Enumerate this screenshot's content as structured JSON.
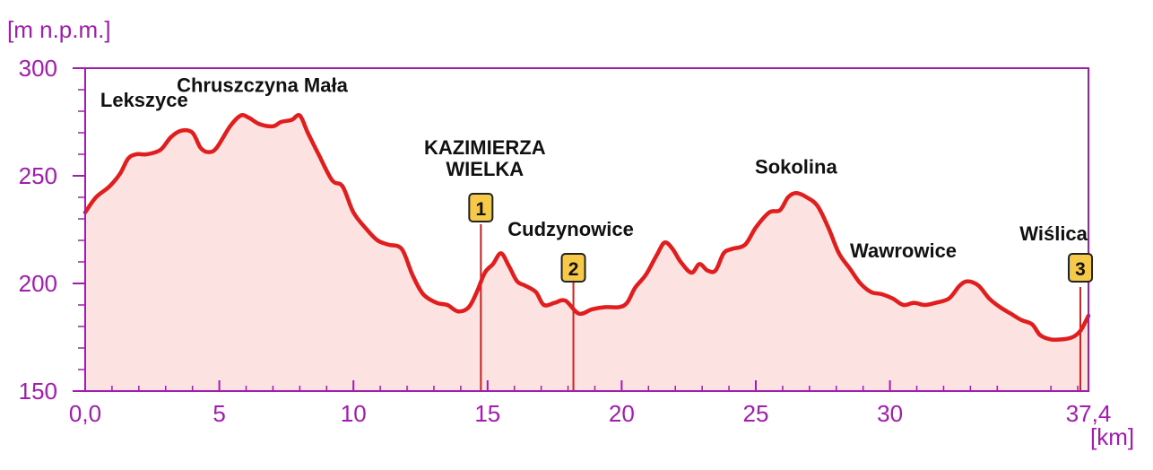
{
  "chart_data": {
    "type": "area",
    "ylabel": "[m n.p.m.]",
    "xlabel": "[km]",
    "xlim": [
      0,
      37.4
    ],
    "ylim": [
      150,
      300
    ],
    "x_ticks": [
      {
        "value": 0,
        "label": "0,0"
      },
      {
        "value": 5,
        "label": "5"
      },
      {
        "value": 10,
        "label": "10"
      },
      {
        "value": 15,
        "label": "15"
      },
      {
        "value": 20,
        "label": "20"
      },
      {
        "value": 25,
        "label": "25"
      },
      {
        "value": 30,
        "label": "30"
      },
      {
        "value": 37.4,
        "label": "37,4"
      }
    ],
    "y_ticks": [
      {
        "value": 150,
        "label": "150"
      },
      {
        "value": 200,
        "label": "200"
      },
      {
        "value": 250,
        "label": "250"
      },
      {
        "value": 300,
        "label": "300"
      }
    ],
    "series": [
      {
        "x": [
          0,
          0.4,
          0.9,
          1.3,
          1.6,
          1.9,
          2.3,
          2.8,
          3.2,
          3.6,
          4.0,
          4.3,
          4.6,
          4.9,
          5.4,
          5.8,
          6.1,
          6.5,
          7.0,
          7.3,
          7.7,
          8.0,
          8.3,
          8.7,
          9.2,
          9.6,
          10.0,
          10.5,
          10.9,
          11.3,
          11.8,
          12.2,
          12.6,
          13.1,
          13.5,
          13.9,
          14.3,
          14.6,
          14.9,
          15.2,
          15.5,
          15.8,
          16.1,
          16.4,
          16.8,
          17.1,
          17.5,
          17.9,
          18.4,
          18.9,
          19.4,
          19.9,
          20.2,
          20.5,
          20.9,
          21.3,
          21.6,
          21.9,
          22.2,
          22.6,
          22.9,
          23.2,
          23.5,
          23.8,
          24.1,
          24.6,
          25.0,
          25.5,
          25.9,
          26.2,
          26.5,
          26.9,
          27.3,
          27.7,
          28.1,
          28.5,
          28.9,
          29.3,
          29.7,
          30.1,
          30.5,
          30.9,
          31.3,
          31.7,
          32.2,
          32.6,
          32.9,
          33.3,
          33.7,
          34.1,
          34.5,
          34.9,
          35.3,
          35.6,
          36.0,
          36.4,
          36.8,
          37.1,
          37.4
        ],
        "y": [
          233,
          240,
          245,
          251,
          258,
          260,
          260,
          262,
          268,
          271,
          270,
          263,
          261,
          263,
          273,
          278,
          277,
          274,
          273,
          275,
          276,
          278,
          270,
          260,
          248,
          245,
          233,
          225,
          220,
          218,
          216,
          204,
          195,
          191,
          190,
          187,
          189,
          196,
          205,
          209,
          214,
          208,
          201,
          199,
          196,
          190,
          191,
          192,
          186,
          188,
          189,
          189,
          191,
          198,
          204,
          213,
          219,
          216,
          210,
          205,
          209,
          206,
          206,
          214,
          216,
          218,
          226,
          233,
          234,
          240,
          242,
          240,
          236,
          226,
          214,
          207,
          200,
          196,
          195,
          193,
          190,
          191,
          190,
          191,
          193,
          199,
          201,
          199,
          193,
          189,
          186,
          183,
          181,
          176,
          174,
          174,
          175,
          178,
          185
        ]
      }
    ],
    "places": [
      {
        "name": "Lekszyce",
        "x": 2.2,
        "y": 282
      },
      {
        "name": "Chruszczyna Mała",
        "x": 6.6,
        "y": 289
      },
      {
        "name": "KAZIMIERZA",
        "x": 14.9,
        "y": 260
      },
      {
        "name": "WIELKA",
        "x": 14.9,
        "y": 250
      },
      {
        "name": "Cudzynowice",
        "x": 18.1,
        "y": 222
      },
      {
        "name": "Sokolina",
        "x": 26.5,
        "y": 251
      },
      {
        "name": "Wawrowice",
        "x": 30.5,
        "y": 212
      },
      {
        "name": "Wiślica",
        "x": 36.1,
        "y": 220
      }
    ],
    "markers": [
      {
        "label": "1",
        "x": 14.75,
        "y": 208
      },
      {
        "label": "2",
        "x": 18.2,
        "y": 186
      },
      {
        "label": "3",
        "x": 37.1,
        "y": 178
      }
    ],
    "grid": false
  },
  "colors": {
    "axis": "#a21caf",
    "line": "#e11d1d",
    "fill": "#fde2e2",
    "marker_fill": "#f7c948",
    "marker_stem": "#d42020",
    "label": "#111111"
  }
}
